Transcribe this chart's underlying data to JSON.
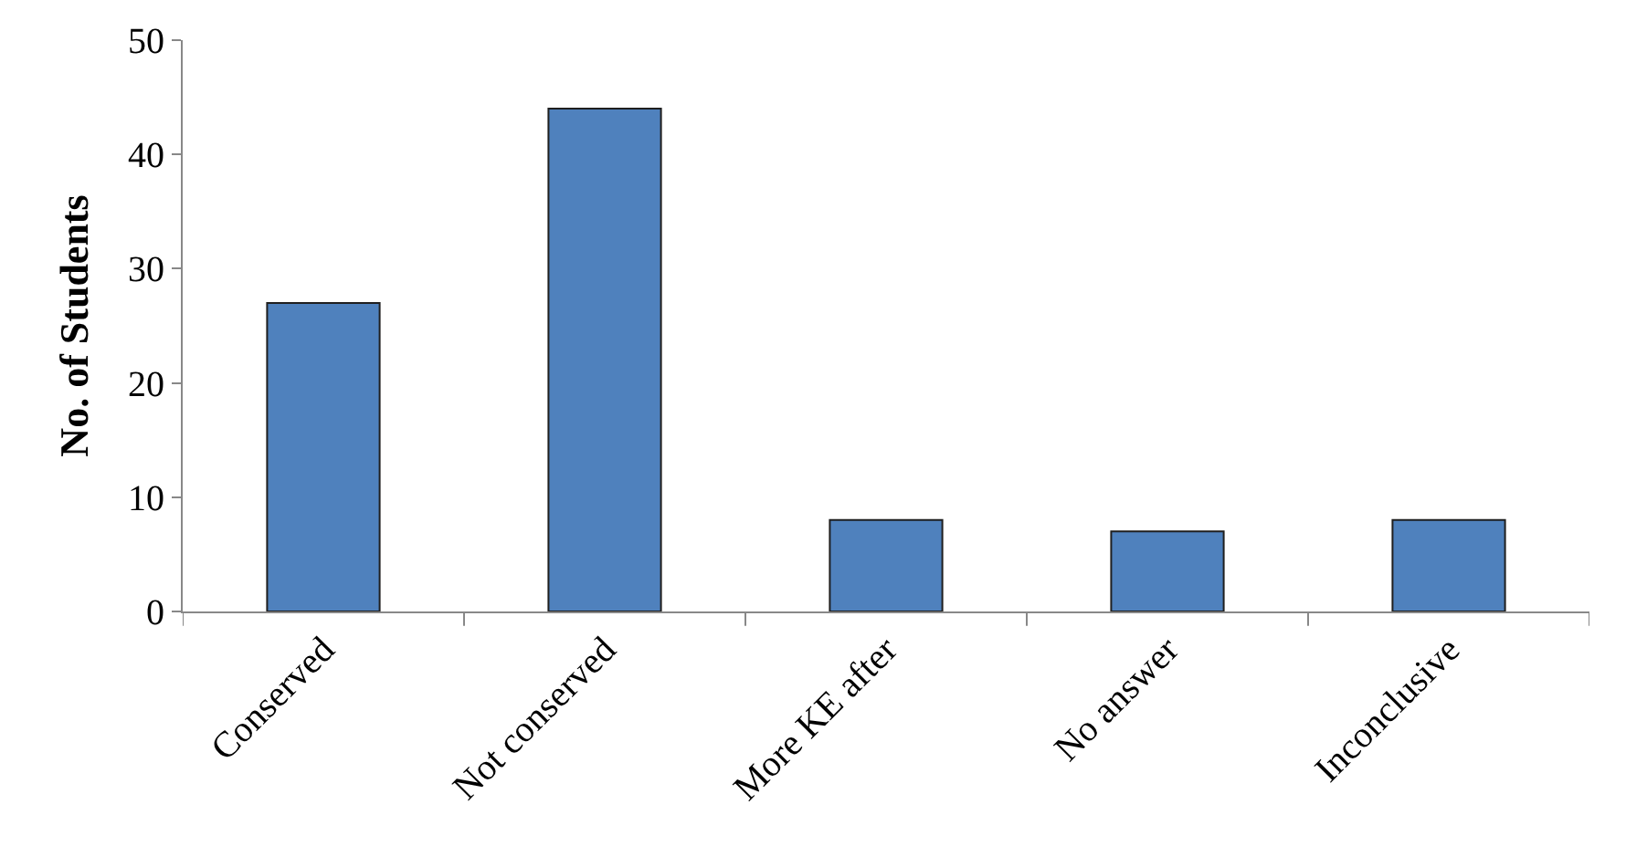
{
  "chart_data": {
    "type": "bar",
    "ylabel": "No. of Students",
    "categories": [
      "Conserved",
      "Not conserved",
      "More KE after",
      "No answer",
      "Inconclusive"
    ],
    "values": [
      27,
      44,
      8,
      7,
      8
    ],
    "color": "#4f81bd",
    "ylim": [
      0,
      50
    ],
    "yticks": [
      0,
      10,
      20,
      30,
      40,
      50
    ],
    "grid": false,
    "legend": false
  }
}
